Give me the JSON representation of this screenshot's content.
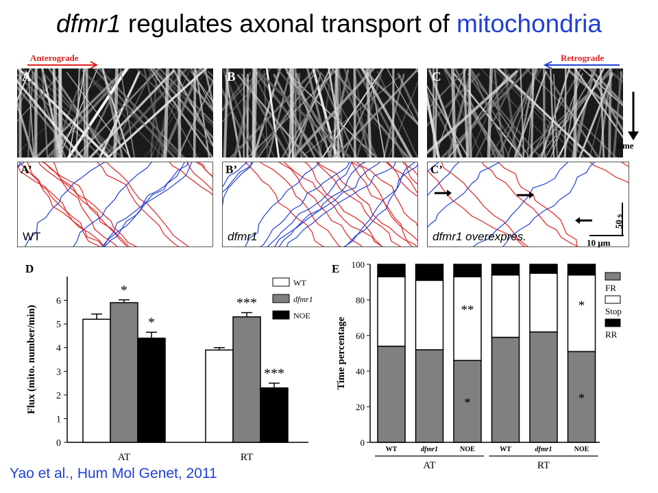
{
  "title": {
    "part1": "dfmr1",
    "part2": " regulates axonal transport of ",
    "part3": "mitochondria"
  },
  "directions": {
    "anterograde": "Anterograde",
    "retrograde": "Retrograde",
    "time": "time"
  },
  "kymo_panels": [
    {
      "label": "A"
    },
    {
      "label": "B"
    },
    {
      "label": "C"
    }
  ],
  "trace_panels": [
    {
      "label": "A’",
      "text": "WT"
    },
    {
      "label": "B’",
      "text": "dfmr1"
    },
    {
      "label": "C’",
      "text": "dfmr1 overexpres."
    }
  ],
  "scale_bar": {
    "time": "50 s",
    "distance": "10 μm"
  },
  "colors": {
    "title_accent": "#1f3fd6",
    "anterograde": "#e02020",
    "retrograde": "#1f3fd6",
    "bar_gray": "#808080"
  },
  "chart_data": [
    {
      "panel": "D",
      "type": "bar",
      "ylabel": "Flux (mito. number/min)",
      "ylim": [
        0,
        7
      ],
      "yticks": [
        "0",
        "1",
        "2",
        "3",
        "4",
        "5",
        "6"
      ],
      "categories": [
        "AT",
        "RT"
      ],
      "legend": [
        "WT",
        "dfmr1",
        "NOE"
      ],
      "series": [
        {
          "name": "WT",
          "color": "#ffffff",
          "values": [
            5.2,
            3.9
          ],
          "errors": [
            0.22,
            0.1
          ],
          "sig": [
            "",
            ""
          ]
        },
        {
          "name": "dfmr1",
          "color": "#808080",
          "values": [
            5.9,
            5.3
          ],
          "errors": [
            0.12,
            0.18
          ],
          "sig": [
            "*",
            "***"
          ]
        },
        {
          "name": "NOE",
          "color": "#000000",
          "values": [
            4.4,
            2.3
          ],
          "errors": [
            0.25,
            0.2
          ],
          "sig": [
            "*",
            "***"
          ]
        }
      ]
    },
    {
      "panel": "E",
      "type": "bar",
      "stacked": true,
      "ylabel": "Time percentage",
      "ylim": [
        0,
        100
      ],
      "yticks": [
        "0",
        "20",
        "40",
        "60",
        "80",
        "100"
      ],
      "categories": [
        "WT",
        "dfmr1",
        "NOE",
        "WT",
        "dfmr1",
        "NOE"
      ],
      "groups": [
        "AT",
        "RT"
      ],
      "legend": [
        "FR",
        "Stop",
        "RR"
      ],
      "series": [
        {
          "name": "FR",
          "color": "#808080",
          "values": [
            54,
            52,
            46,
            59,
            62,
            51
          ]
        },
        {
          "name": "Stop",
          "color": "#ffffff",
          "values": [
            39,
            39,
            47,
            35,
            33,
            43
          ]
        },
        {
          "name": "RR",
          "color": "#000000",
          "values": [
            7,
            9,
            7,
            6,
            5,
            6
          ]
        }
      ],
      "annotations": [
        {
          "bar": 2,
          "series": "FR",
          "text": "*"
        },
        {
          "bar": 2,
          "series": "Stop",
          "text": "**"
        },
        {
          "bar": 5,
          "series": "FR",
          "text": "*"
        },
        {
          "bar": 5,
          "series": "Stop",
          "text": "*"
        }
      ]
    }
  ],
  "citation": "Yao et al., Hum Mol Genet, 2011"
}
